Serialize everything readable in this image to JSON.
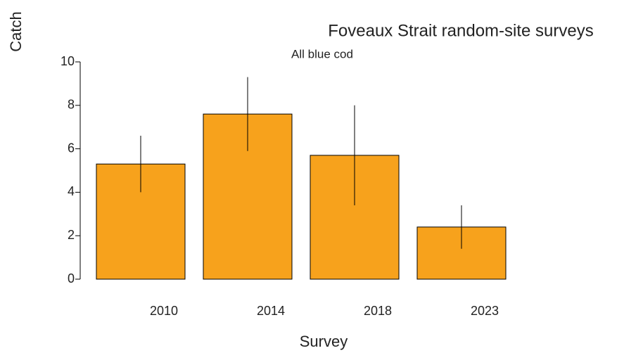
{
  "chart_data": {
    "type": "bar",
    "title": "Foveaux Strait random-site surveys",
    "subtitle": "All blue cod",
    "x_label": "Survey",
    "y_label": "Catch",
    "categories": [
      "2010",
      "2014",
      "2018",
      "2023"
    ],
    "values": [
      5.3,
      7.6,
      5.7,
      2.4
    ],
    "errors": [
      1.3,
      1.7,
      2.3,
      1.0
    ],
    "color": "#f7a21c",
    "ylim": [
      0,
      10
    ],
    "yticks": [
      0,
      2,
      4,
      6,
      8,
      10
    ]
  }
}
